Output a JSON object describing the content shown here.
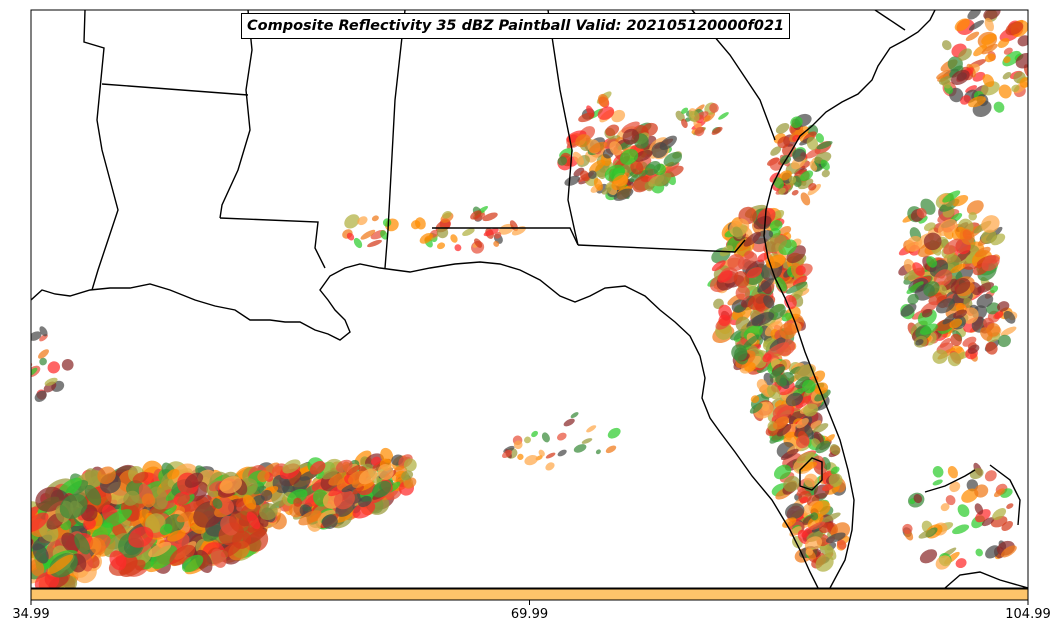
{
  "title": "Composite Reflectivity 35 dBZ Paintball Valid: 202105120000f021",
  "colorbar": {
    "color": "#fdc46a",
    "ticks": [
      "34.99",
      "69.99",
      "104.99"
    ]
  },
  "colors": {
    "paintball": [
      "#ff2a2a",
      "#ff8c00",
      "#ffa84a",
      "#2ecc2e",
      "#8b2a2a",
      "#9a9a3a",
      "#d43a1a",
      "#3a8a3a",
      "#f07818",
      "#b0b040",
      "#e8503a",
      "#4a4a4a"
    ],
    "boundaries": "#000000"
  }
}
